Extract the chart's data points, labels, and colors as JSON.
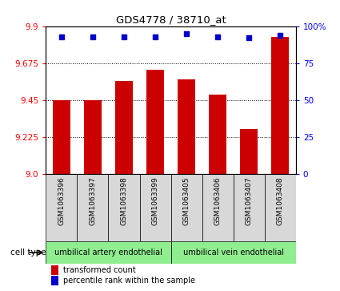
{
  "title": "GDS4778 / 38710_at",
  "samples": [
    "GSM1063396",
    "GSM1063397",
    "GSM1063398",
    "GSM1063399",
    "GSM1063405",
    "GSM1063406",
    "GSM1063407",
    "GSM1063408"
  ],
  "bar_values": [
    9.45,
    9.45,
    9.565,
    9.635,
    9.575,
    9.48,
    9.27,
    9.835
  ],
  "percentile_values": [
    93,
    93,
    93,
    93,
    95,
    93,
    92,
    94
  ],
  "ylim_left": [
    9.0,
    9.9
  ],
  "ylim_right": [
    0,
    100
  ],
  "yticks_left": [
    9.0,
    9.225,
    9.45,
    9.675,
    9.9
  ],
  "yticks_right": [
    0,
    25,
    50,
    75,
    100
  ],
  "bar_color": "#cc0000",
  "dot_color": "#0000cc",
  "cell_type_groups": [
    {
      "label": "umbilical artery endothelial",
      "start": 0,
      "end": 3
    },
    {
      "label": "umbilical vein endothelial",
      "start": 4,
      "end": 7
    }
  ],
  "cell_type_label": "cell type",
  "legend_bar_label": "transformed count",
  "legend_dot_label": "percentile rank within the sample",
  "sample_box_color": "#d8d8d8",
  "green_color": "#90ee90",
  "plot_bg": "#ffffff"
}
